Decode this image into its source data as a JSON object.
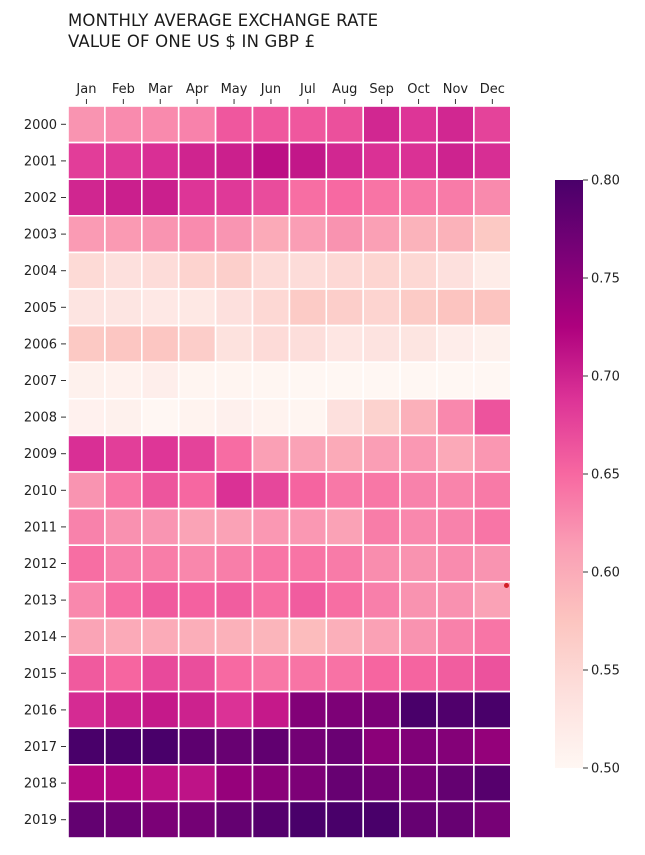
{
  "title": {
    "line1": "MONTHLY AVERAGE EXCHANGE RATE",
    "line2": "VALUE OF ONE US $ IN GBP £"
  },
  "chart_data": {
    "type": "heatmap",
    "title": "MONTHLY AVERAGE EXCHANGE RATE VALUE OF ONE US $ IN GBP £",
    "x_categories": [
      "Jan",
      "Feb",
      "Mar",
      "Apr",
      "May",
      "Jun",
      "Jul",
      "Aug",
      "Sep",
      "Oct",
      "Nov",
      "Dec"
    ],
    "y_categories": [
      "2000",
      "2001",
      "2002",
      "2003",
      "2004",
      "2005",
      "2006",
      "2007",
      "2008",
      "2009",
      "2010",
      "2011",
      "2012",
      "2013",
      "2014",
      "2015",
      "2016",
      "2017",
      "2018",
      "2019"
    ],
    "values": [
      [
        0.62,
        0.626,
        0.627,
        0.632,
        0.662,
        0.662,
        0.662,
        0.667,
        0.697,
        0.687,
        0.697,
        0.677
      ],
      [
        0.681,
        0.684,
        0.691,
        0.699,
        0.702,
        0.714,
        0.709,
        0.697,
        0.69,
        0.69,
        0.7,
        0.692
      ],
      [
        0.698,
        0.703,
        0.703,
        0.687,
        0.684,
        0.67,
        0.646,
        0.649,
        0.642,
        0.639,
        0.637,
        0.627
      ],
      [
        0.615,
        0.616,
        0.62,
        0.626,
        0.619,
        0.602,
        0.613,
        0.621,
        0.612,
        0.593,
        0.594,
        0.57
      ],
      [
        0.546,
        0.537,
        0.543,
        0.555,
        0.561,
        0.544,
        0.543,
        0.548,
        0.553,
        0.549,
        0.537,
        0.518
      ],
      [
        0.531,
        0.529,
        0.524,
        0.525,
        0.538,
        0.549,
        0.567,
        0.562,
        0.554,
        0.567,
        0.576,
        0.576
      ],
      [
        0.57,
        0.573,
        0.573,
        0.564,
        0.535,
        0.544,
        0.54,
        0.527,
        0.532,
        0.53,
        0.516,
        0.51
      ],
      [
        0.51,
        0.508,
        0.514,
        0.504,
        0.504,
        0.502,
        0.489,
        0.496,
        0.494,
        0.488,
        0.482,
        0.495
      ],
      [
        0.509,
        0.51,
        0.498,
        0.506,
        0.511,
        0.507,
        0.503,
        0.537,
        0.557,
        0.596,
        0.628,
        0.665
      ],
      [
        0.691,
        0.68,
        0.686,
        0.677,
        0.647,
        0.612,
        0.61,
        0.602,
        0.613,
        0.617,
        0.603,
        0.618
      ],
      [
        0.62,
        0.641,
        0.664,
        0.651,
        0.69,
        0.674,
        0.653,
        0.639,
        0.64,
        0.632,
        0.631,
        0.638
      ],
      [
        0.632,
        0.622,
        0.619,
        0.609,
        0.61,
        0.617,
        0.617,
        0.61,
        0.636,
        0.628,
        0.632,
        0.641
      ],
      [
        0.646,
        0.634,
        0.636,
        0.629,
        0.635,
        0.641,
        0.642,
        0.637,
        0.625,
        0.621,
        0.626,
        0.62
      ],
      [
        0.628,
        0.647,
        0.66,
        0.655,
        0.658,
        0.646,
        0.659,
        0.646,
        0.634,
        0.621,
        0.622,
        0.61
      ],
      [
        0.608,
        0.602,
        0.601,
        0.598,
        0.595,
        0.591,
        0.584,
        0.597,
        0.611,
        0.621,
        0.633,
        0.641
      ],
      [
        0.66,
        0.652,
        0.672,
        0.669,
        0.649,
        0.64,
        0.642,
        0.643,
        0.652,
        0.653,
        0.658,
        0.666
      ],
      [
        0.694,
        0.702,
        0.707,
        0.701,
        0.689,
        0.707,
        0.757,
        0.76,
        0.762,
        0.803,
        0.795,
        0.8
      ],
      [
        0.81,
        0.802,
        0.809,
        0.785,
        0.776,
        0.782,
        0.768,
        0.775,
        0.75,
        0.758,
        0.755,
        0.744
      ],
      [
        0.72,
        0.719,
        0.714,
        0.712,
        0.742,
        0.751,
        0.76,
        0.777,
        0.768,
        0.765,
        0.779,
        0.79
      ],
      [
        0.78,
        0.774,
        0.762,
        0.767,
        0.779,
        0.791,
        0.808,
        0.822,
        0.81,
        0.778,
        0.777,
        0.765
      ]
    ],
    "colorbar": {
      "min": 0.5,
      "max": 0.8,
      "ticks": [
        "0.50",
        "0.55",
        "0.60",
        "0.65",
        "0.70",
        "0.75",
        "0.80"
      ],
      "colors": [
        "#fff7f3",
        "#fde0dd",
        "#fcc5c0",
        "#fa9fb5",
        "#f768a1",
        "#dd3497",
        "#ae017e",
        "#7a0177",
        "#49006a"
      ]
    }
  }
}
